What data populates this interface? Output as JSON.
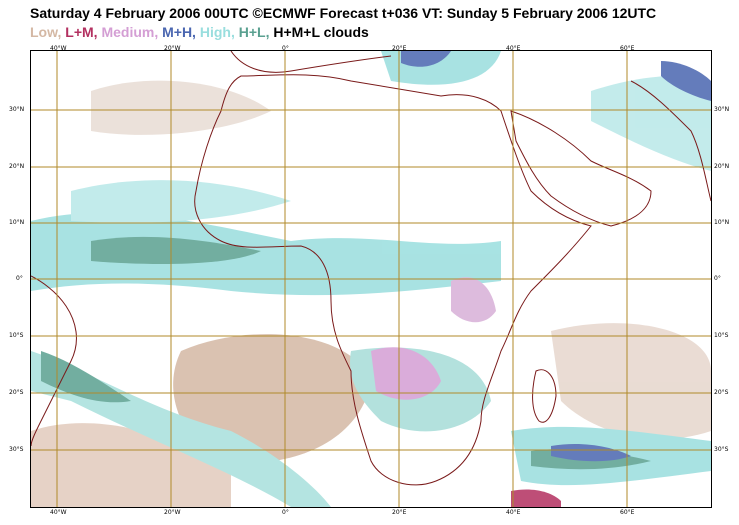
{
  "title": "Saturday 4 February 2006 00UTC ©ECMWF Forecast t+036 VT: Sunday 5 February 2006 12UTC",
  "legend": [
    {
      "text": "Low,",
      "color": "#d4b8a4"
    },
    {
      "text": "L+M,",
      "color": "#b33060"
    },
    {
      "text": "Medium,",
      "color": "#d49ed4"
    },
    {
      "text": "M+H,",
      "color": "#4a66b0"
    },
    {
      "text": "High,",
      "color": "#99dede"
    },
    {
      "text": "H+L,",
      "color": "#5aa090"
    },
    {
      "text": "H+M+L clouds",
      "color": "#000000"
    }
  ],
  "axes": {
    "lon_ticks_bottom": [
      "40°W",
      "20°W",
      "0°",
      "20°E",
      "40°E",
      "60°E"
    ],
    "lon_ticks_top": [
      "40°W",
      "20°W",
      "0°",
      "20°E",
      "40°E",
      "60°E"
    ],
    "lat_ticks": [
      "30°N",
      "20°N",
      "10°N",
      "0°",
      "10°S",
      "20°S",
      "30°S"
    ]
  },
  "colors": {
    "coast": "#7a1a1a",
    "grid": "#b08a2a"
  }
}
